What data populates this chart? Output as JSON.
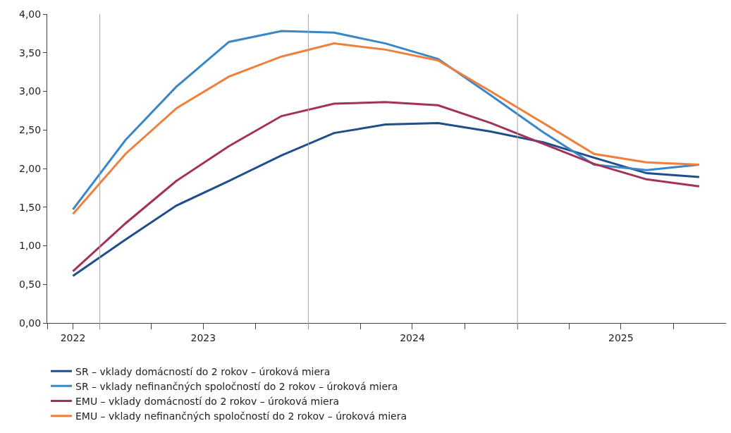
{
  "chart_data": {
    "type": "line",
    "x": [
      "2022-11-15",
      "2023-02-15",
      "2023-05-15",
      "2023-08-15",
      "2023-11-15",
      "2024-02-15",
      "2024-05-15",
      "2024-08-15",
      "2024-11-15",
      "2025-02-15",
      "2025-05-15",
      "2025-08-15",
      "2025-11-15"
    ],
    "series": [
      {
        "name": "SR – vklady domácností do 2 rokov – úroková miera",
        "color": "#1f4e8c",
        "values": [
          0.61,
          1.08,
          1.52,
          1.84,
          2.17,
          2.46,
          2.57,
          2.59,
          2.48,
          2.34,
          2.14,
          1.94,
          1.89
        ]
      },
      {
        "name": "SR – vklady nefinančných spoločností do 2 rokov – úroková miera",
        "color": "#3a87c8",
        "values": [
          1.47,
          2.37,
          3.06,
          3.64,
          3.78,
          3.76,
          3.62,
          3.42,
          2.95,
          2.47,
          2.05,
          1.98,
          2.05
        ]
      },
      {
        "name": "EMU – vklady domácností do 2 rokov – úroková miera",
        "color": "#a3325a",
        "values": [
          0.67,
          1.29,
          1.84,
          2.29,
          2.68,
          2.84,
          2.86,
          2.82,
          2.59,
          2.32,
          2.06,
          1.86,
          1.77
        ]
      },
      {
        "name": "EMU – vklady nefinančných spoločností do 2 rokov – úroková miera",
        "color": "#f07f3c",
        "values": [
          1.41,
          2.19,
          2.78,
          3.19,
          3.45,
          3.62,
          3.54,
          3.4,
          3.0,
          2.59,
          2.19,
          2.08,
          2.05
        ]
      }
    ],
    "xlim": [
      "2022-10-01",
      "2026-01-01"
    ],
    "xticks": [
      {
        "value": "2022-10-01",
        "label": null
      },
      {
        "value": "2022-11-15",
        "label": "2022"
      },
      {
        "value": "2023-01-01",
        "label": null
      },
      {
        "value": "2023-04-01",
        "label": null
      },
      {
        "value": "2023-07-01",
        "label": "2023"
      },
      {
        "value": "2023-10-01",
        "label": null
      },
      {
        "value": "2024-01-01",
        "label": null
      },
      {
        "value": "2024-04-01",
        "label": null
      },
      {
        "value": "2024-07-01",
        "label": "2024"
      },
      {
        "value": "2024-10-01",
        "label": null
      },
      {
        "value": "2025-01-01",
        "label": null
      },
      {
        "value": "2025-04-01",
        "label": null
      },
      {
        "value": "2025-07-01",
        "label": "2025"
      },
      {
        "value": "2025-10-01",
        "label": null
      }
    ],
    "ylim": [
      0,
      4
    ],
    "yticks": [
      {
        "value": 0,
        "label": "0,00"
      },
      {
        "value": 0.5,
        "label": "0,50"
      },
      {
        "value": 1,
        "label": "1,00"
      },
      {
        "value": 1.5,
        "label": "1,50"
      },
      {
        "value": 2,
        "label": "2,00"
      },
      {
        "value": 2.5,
        "label": "2,50"
      },
      {
        "value": 3,
        "label": "3,00"
      },
      {
        "value": 3.5,
        "label": "3,50"
      },
      {
        "value": 4,
        "label": "4,00"
      }
    ],
    "ref_lines": [
      {
        "axis": "x",
        "value": "2023-01-01",
        "color": "#a6a6a6"
      },
      {
        "axis": "x",
        "value": "2024-01-01",
        "color": "#a6a6a6"
      },
      {
        "axis": "x",
        "value": "2025-01-01",
        "color": "#a6a6a6"
      }
    ],
    "legend": "bottom",
    "marker": "none",
    "line_style": "solid"
  }
}
